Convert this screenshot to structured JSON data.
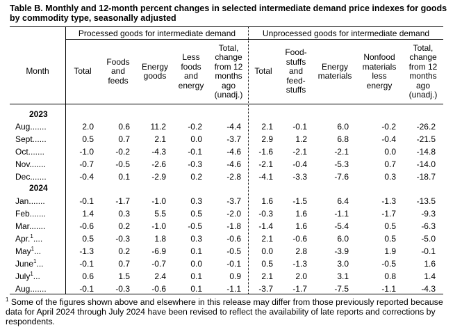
{
  "title": "Table B. Monthly and 12-month percent changes in selected intermediate demand price indexes for goods by commodity type, seasonally adjusted",
  "groups": {
    "processed": "Processed goods for intermediate demand",
    "unprocessed": "Unprocessed goods for intermediate demand"
  },
  "columns": {
    "month": "Month",
    "p_total": "Total",
    "p_foods": "Foods\nand\nfeeds",
    "p_energy": "Energy\ngoods",
    "p_less": "Less\nfoods\nand\nenergy",
    "p_12m": "Total,\nchange\nfrom 12\nmonths\nago\n(unadj.)",
    "u_total": "Total",
    "u_food": "Food-\nstuffs\nand\nfeed-\nstuffs",
    "u_energy": "Energy\nmaterials",
    "u_nonfood": "Nonfood\nmaterials\nless\nenergy",
    "u_12m": "Total,\nchange\nfrom 12\nmonths\nago\n(unadj.)"
  },
  "years": [
    "2023",
    "2024"
  ],
  "rows": [
    {
      "month": "Aug.",
      "note": "",
      "values": [
        "2.0",
        "0.6",
        "11.2",
        "-0.2",
        "-4.4",
        "2.1",
        "-0.1",
        "6.0",
        "-0.2",
        "-26.2"
      ]
    },
    {
      "month": "Sept.",
      "note": "",
      "values": [
        "0.5",
        "0.7",
        "2.1",
        "0.0",
        "-3.7",
        "2.9",
        "1.2",
        "6.8",
        "-0.4",
        "-21.5"
      ]
    },
    {
      "month": "Oct.",
      "note": "",
      "values": [
        "-1.0",
        "-0.2",
        "-4.3",
        "-0.1",
        "-4.6",
        "-1.6",
        "-2.1",
        "-2.1",
        "0.0",
        "-14.8"
      ]
    },
    {
      "month": "Nov.",
      "note": "",
      "values": [
        "-0.7",
        "-0.5",
        "-2.6",
        "-0.3",
        "-4.6",
        "-2.1",
        "-0.4",
        "-5.3",
        "0.7",
        "-14.0"
      ]
    },
    {
      "month": "Dec.",
      "note": "",
      "values": [
        "-0.4",
        "0.1",
        "-2.9",
        "0.2",
        "-2.8",
        "-4.1",
        "-3.3",
        "-7.6",
        "0.3",
        "-18.7"
      ]
    },
    {
      "month": "Jan.",
      "note": "",
      "values": [
        "-0.1",
        "-1.7",
        "-1.0",
        "0.3",
        "-3.7",
        "1.6",
        "-1.5",
        "6.4",
        "-1.3",
        "-13.5"
      ]
    },
    {
      "month": "Feb.",
      "note": "",
      "values": [
        "1.4",
        "0.3",
        "5.5",
        "0.5",
        "-2.0",
        "-0.3",
        "1.6",
        "-1.1",
        "-1.7",
        "-9.3"
      ]
    },
    {
      "month": "Mar.",
      "note": "",
      "values": [
        "-0.6",
        "0.2",
        "-1.0",
        "-0.5",
        "-1.8",
        "-1.4",
        "1.6",
        "-5.4",
        "0.5",
        "-6.3"
      ]
    },
    {
      "month": "Apr.",
      "note": "1",
      "values": [
        "0.5",
        "-0.3",
        "1.8",
        "0.3",
        "-0.6",
        "2.1",
        "-0.6",
        "6.0",
        "0.5",
        "-5.0"
      ]
    },
    {
      "month": "May",
      "note": "1",
      "values": [
        "-1.3",
        "0.2",
        "-6.9",
        "0.1",
        "-0.5",
        "0.0",
        "2.8",
        "-3.9",
        "1.9",
        "-0.1"
      ]
    },
    {
      "month": "June",
      "note": "1",
      "values": [
        "-0.1",
        "0.7",
        "-0.7",
        "0.0",
        "-0.1",
        "0.5",
        "-1.3",
        "3.0",
        "-0.5",
        "1.6"
      ]
    },
    {
      "month": "July",
      "note": "1",
      "values": [
        "0.6",
        "1.5",
        "2.4",
        "0.1",
        "0.9",
        "2.1",
        "2.0",
        "3.1",
        "0.8",
        "1.4"
      ]
    },
    {
      "month": "Aug.",
      "note": "",
      "values": [
        "-0.1",
        "-0.3",
        "-0.6",
        "0.1",
        "-1.1",
        "-3.7",
        "-1.7",
        "-7.5",
        "-1.1",
        "-4.3"
      ]
    }
  ],
  "footnote": {
    "mark": "1",
    "text": " Some of the figures shown above and elsewhere in this release may differ from those previously reported because data for April 2024 through July 2024 have been revised to reflect the availability of late reports and corrections by respondents."
  }
}
